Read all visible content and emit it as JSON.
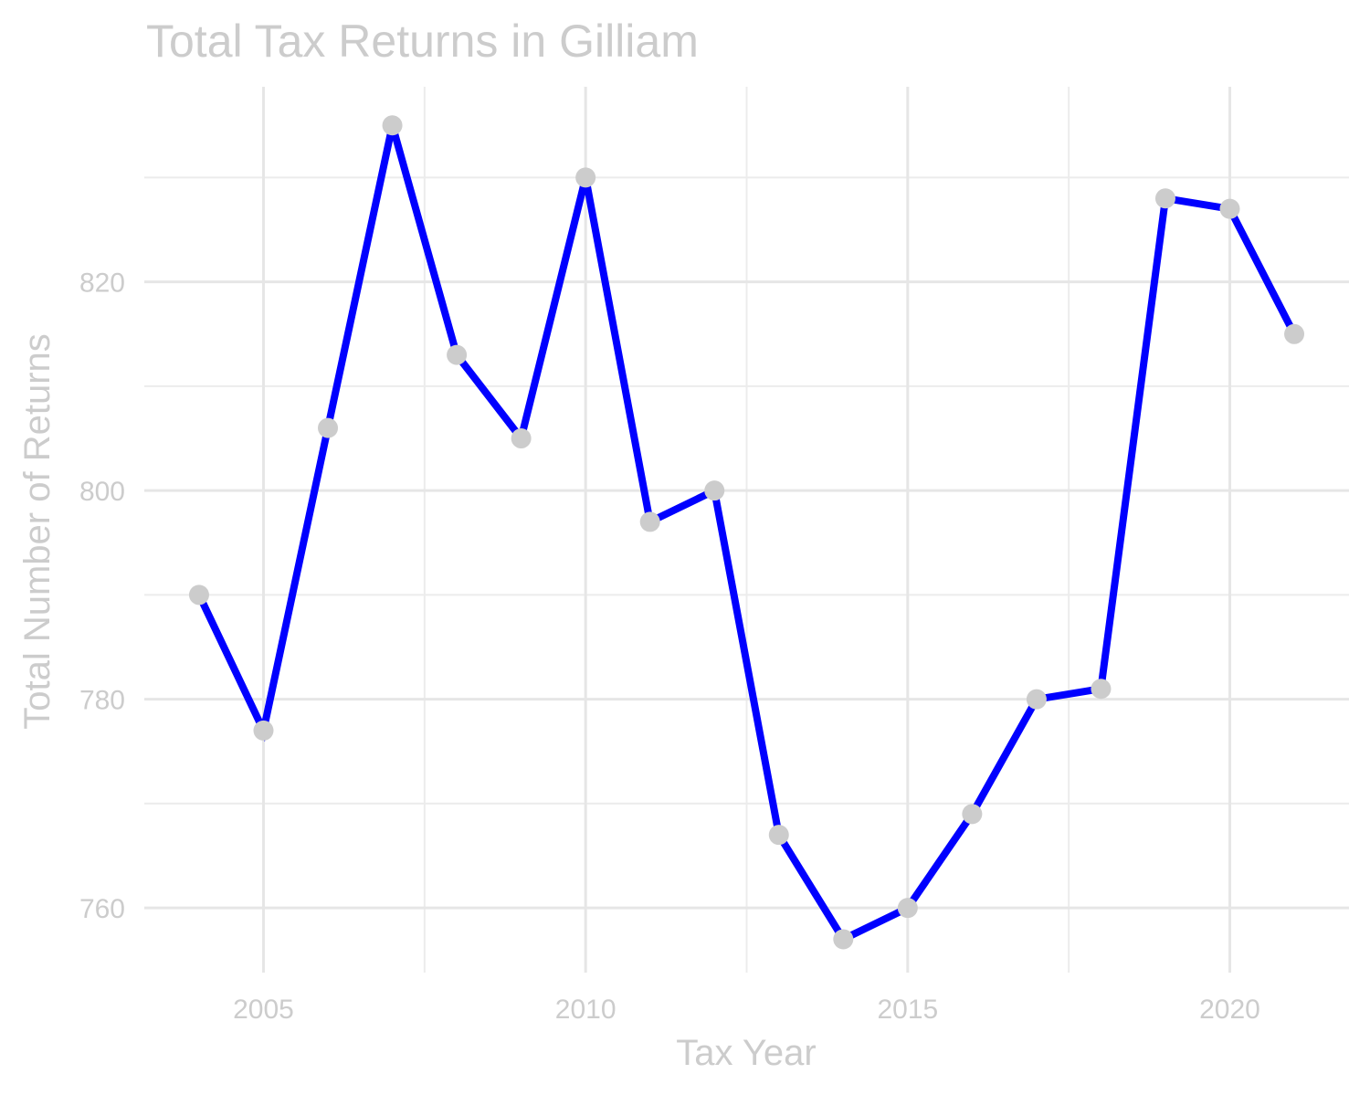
{
  "chart_data": {
    "type": "line",
    "title": "Total Tax Returns in Gilliam",
    "xlabel": "Tax Year",
    "ylabel": "Total Number of Returns",
    "x": [
      2004,
      2005,
      2006,
      2007,
      2008,
      2009,
      2010,
      2011,
      2012,
      2013,
      2014,
      2015,
      2016,
      2017,
      2018,
      2019,
      2020,
      2021
    ],
    "series": [
      {
        "values": [
          790,
          777,
          806,
          835,
          813,
          805,
          830,
          797,
          800,
          767,
          757,
          760,
          769,
          780,
          781,
          828,
          827,
          815
        ]
      }
    ],
    "x_ticks": [
      "2005",
      "2010",
      "2015",
      "2020"
    ],
    "y_ticks": [
      "760",
      "780",
      "800",
      "820"
    ],
    "xlim": [
      2003.15,
      2021.85
    ],
    "ylim": [
      753.8,
      838.7
    ],
    "grid": true,
    "line_color": "#0000ff",
    "marker_color": "#cccccc",
    "text_color": "#cccccc"
  }
}
